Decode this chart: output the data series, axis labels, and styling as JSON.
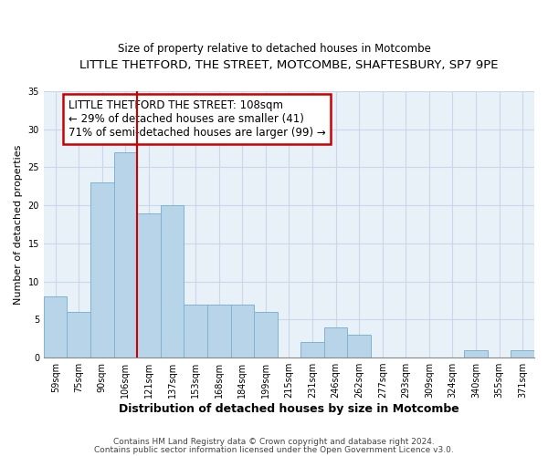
{
  "title": "LITTLE THETFORD, THE STREET, MOTCOMBE, SHAFTESBURY, SP7 9PE",
  "subtitle": "Size of property relative to detached houses in Motcombe",
  "xlabel": "Distribution of detached houses by size in Motcombe",
  "ylabel": "Number of detached properties",
  "bin_labels": [
    "59sqm",
    "75sqm",
    "90sqm",
    "106sqm",
    "121sqm",
    "137sqm",
    "153sqm",
    "168sqm",
    "184sqm",
    "199sqm",
    "215sqm",
    "231sqm",
    "246sqm",
    "262sqm",
    "277sqm",
    "293sqm",
    "309sqm",
    "324sqm",
    "340sqm",
    "355sqm",
    "371sqm"
  ],
  "bar_heights": [
    8,
    6,
    23,
    27,
    19,
    20,
    7,
    7,
    7,
    6,
    0,
    2,
    4,
    3,
    0,
    0,
    0,
    0,
    1,
    0,
    1
  ],
  "bar_color": "#b8d4e8",
  "bar_edge_color": "#7fb3d3",
  "vline_color": "#cc0000",
  "vline_x_index": 3,
  "annotation_text": "LITTLE THETFORD THE STREET: 108sqm\n← 29% of detached houses are smaller (41)\n71% of semi-detached houses are larger (99) →",
  "annotation_box_edge": "#cc0000",
  "ylim": [
    0,
    35
  ],
  "yticks": [
    0,
    5,
    10,
    15,
    20,
    25,
    30,
    35
  ],
  "footer1": "Contains HM Land Registry data © Crown copyright and database right 2024.",
  "footer2": "Contains public sector information licensed under the Open Government Licence v3.0.",
  "background_color": "#ffffff",
  "grid_color": "#c8d8e8",
  "title_fontsize": 9.5,
  "subtitle_fontsize": 8.5,
  "xlabel_fontsize": 9,
  "ylabel_fontsize": 8,
  "tick_fontsize": 7,
  "annotation_fontsize": 8.5,
  "footer_fontsize": 6.5
}
